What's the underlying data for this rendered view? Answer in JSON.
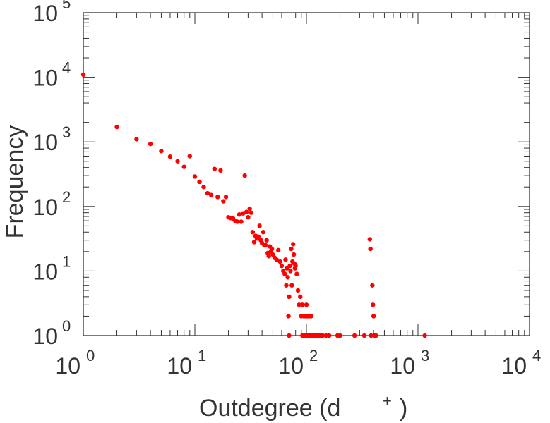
{
  "chart_data": {
    "type": "scatter",
    "title": "",
    "xlabel": "Outdegree (d",
    "xlabel_sup": "+",
    "xlabel_close": ")",
    "ylabel": "Frequency",
    "xscale": "log",
    "yscale": "log",
    "xlim": [
      1,
      10000
    ],
    "ylim": [
      1,
      100000
    ],
    "grid": false,
    "marker_color": "#ff0000",
    "x_ticks": [
      {
        "base": "10",
        "exp": "0",
        "value": 1
      },
      {
        "base": "10",
        "exp": "1",
        "value": 10
      },
      {
        "base": "10",
        "exp": "2",
        "value": 100
      },
      {
        "base": "10",
        "exp": "3",
        "value": 1000
      },
      {
        "base": "10",
        "exp": "4",
        "value": 10000
      }
    ],
    "y_ticks": [
      {
        "base": "10",
        "exp": "0",
        "value": 1
      },
      {
        "base": "10",
        "exp": "1",
        "value": 10
      },
      {
        "base": "10",
        "exp": "2",
        "value": 100
      },
      {
        "base": "10",
        "exp": "3",
        "value": 1000
      },
      {
        "base": "10",
        "exp": "4",
        "value": 10000
      },
      {
        "base": "10",
        "exp": "5",
        "value": 100000
      }
    ],
    "points": [
      [
        1,
        11000
      ],
      [
        2,
        1700
      ],
      [
        3,
        1100
      ],
      [
        4,
        930
      ],
      [
        5,
        720
      ],
      [
        6,
        590
      ],
      [
        7,
        500
      ],
      [
        8,
        410
      ],
      [
        9,
        600
      ],
      [
        10,
        290
      ],
      [
        11,
        240
      ],
      [
        12,
        200
      ],
      [
        13,
        160
      ],
      [
        14,
        150
      ],
      [
        15,
        380
      ],
      [
        16,
        140
      ],
      [
        17,
        360
      ],
      [
        18,
        120
      ],
      [
        19,
        140
      ],
      [
        20,
        68
      ],
      [
        21,
        66
      ],
      [
        22,
        65
      ],
      [
        23,
        60
      ],
      [
        24,
        58
      ],
      [
        25,
        75
      ],
      [
        26,
        58
      ],
      [
        27,
        78
      ],
      [
        28,
        300
      ],
      [
        29,
        82
      ],
      [
        30,
        68
      ],
      [
        31,
        92
      ],
      [
        32,
        80
      ],
      [
        33,
        40
      ],
      [
        34,
        28
      ],
      [
        35,
        35
      ],
      [
        36,
        32
      ],
      [
        37,
        34
      ],
      [
        38,
        50
      ],
      [
        39,
        30
      ],
      [
        40,
        27
      ],
      [
        41,
        40
      ],
      [
        42,
        25
      ],
      [
        43,
        25
      ],
      [
        44,
        30
      ],
      [
        45,
        19
      ],
      [
        46,
        17
      ],
      [
        47,
        24
      ],
      [
        48,
        20
      ],
      [
        49,
        22
      ],
      [
        50,
        18
      ],
      [
        52,
        16
      ],
      [
        54,
        15
      ],
      [
        56,
        21
      ],
      [
        58,
        14
      ],
      [
        60,
        12
      ],
      [
        62,
        10
      ],
      [
        64,
        9
      ],
      [
        65,
        15
      ],
      [
        66,
        6
      ],
      [
        67,
        11
      ],
      [
        68,
        8
      ],
      [
        69,
        2
      ],
      [
        70,
        4
      ],
      [
        71,
        12
      ],
      [
        72,
        10
      ],
      [
        73,
        22
      ],
      [
        74,
        6
      ],
      [
        75,
        14
      ],
      [
        76,
        26
      ],
      [
        77,
        18
      ],
      [
        78,
        13
      ],
      [
        79,
        11
      ],
      [
        80,
        12
      ],
      [
        82,
        9
      ],
      [
        84,
        5
      ],
      [
        86,
        3
      ],
      [
        88,
        4
      ],
      [
        90,
        2
      ],
      [
        92,
        3
      ],
      [
        95,
        2
      ],
      [
        98,
        2
      ],
      [
        100,
        3
      ],
      [
        102,
        2
      ],
      [
        105,
        2
      ],
      [
        110,
        2
      ],
      [
        70,
        1
      ],
      [
        92,
        1
      ],
      [
        96,
        1
      ],
      [
        100,
        1
      ],
      [
        103,
        1
      ],
      [
        106,
        1
      ],
      [
        108,
        1
      ],
      [
        112,
        1
      ],
      [
        115,
        1
      ],
      [
        120,
        1
      ],
      [
        125,
        1
      ],
      [
        130,
        1
      ],
      [
        135,
        1
      ],
      [
        140,
        1
      ],
      [
        150,
        1
      ],
      [
        160,
        1
      ],
      [
        190,
        1
      ],
      [
        200,
        1
      ],
      [
        270,
        1
      ],
      [
        330,
        1
      ],
      [
        370,
        31
      ],
      [
        375,
        22
      ],
      [
        380,
        1
      ],
      [
        390,
        6
      ],
      [
        395,
        3
      ],
      [
        400,
        2
      ],
      [
        410,
        1
      ],
      [
        420,
        1
      ],
      [
        1150,
        1
      ]
    ]
  }
}
